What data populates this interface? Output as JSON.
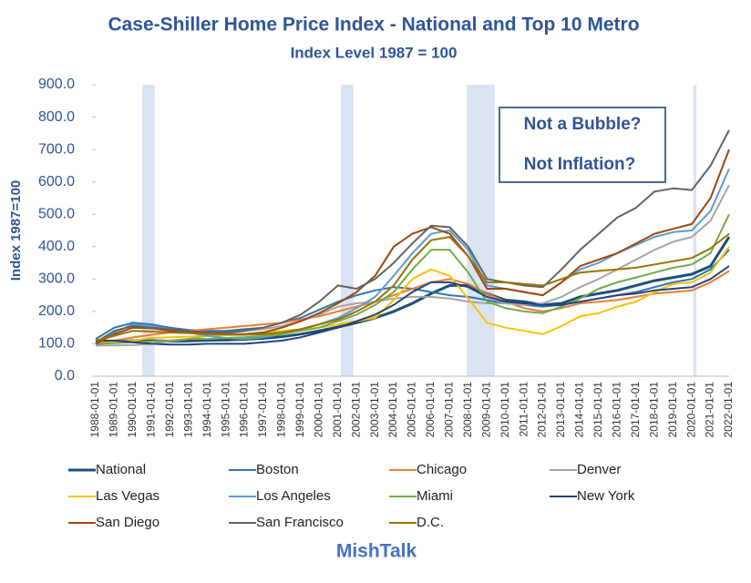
{
  "chart_data": {
    "type": "line",
    "title": "Case-Shiller Home Price Index - National and Top 10 Metro",
    "subtitle": "Index Level 1987 = 100",
    "y_label": "Index 1987=100",
    "footer": "MishTalk",
    "annotations": [
      "Not a Bubble?",
      "Not Inflation?"
    ],
    "x": [
      "1988-01-01",
      "1989-01-01",
      "1990-01-01",
      "1991-01-01",
      "1992-01-01",
      "1993-01-01",
      "1994-01-01",
      "1995-01-01",
      "1996-01-01",
      "1997-01-01",
      "1998-01-01",
      "1999-01-01",
      "2000-01-01",
      "2001-01-01",
      "2002-01-01",
      "2003-01-01",
      "2004-01-01",
      "2005-01-01",
      "2006-01-01",
      "2007-01-01",
      "2008-01-01",
      "2009-01-01",
      "2010-01-01",
      "2011-01-01",
      "2012-01-01",
      "2013-01-01",
      "2014-01-01",
      "2015-01-01",
      "2016-01-01",
      "2017-01-01",
      "2018-01-01",
      "2019-01-01",
      "2020-01-01",
      "2021-01-01",
      "2022-01-01"
    ],
    "ylim": [
      0,
      900
    ],
    "yticks": [
      {
        "value": 0,
        "label": "0.0"
      },
      {
        "value": 100,
        "label": "100.0"
      },
      {
        "value": 200,
        "label": "200.0"
      },
      {
        "value": 300,
        "label": "300.0"
      },
      {
        "value": 400,
        "label": "400.0"
      },
      {
        "value": 500,
        "label": "500.0"
      },
      {
        "value": 600,
        "label": "600.0"
      },
      {
        "value": 700,
        "label": "700.0"
      },
      {
        "value": 800,
        "label": "800.0"
      },
      {
        "value": 900,
        "label": "900.0"
      }
    ],
    "recessions": [
      [
        "1990-07-01",
        "1991-03-01"
      ],
      [
        "2001-03-01",
        "2001-11-01"
      ],
      [
        "2007-12-01",
        "2009-06-01"
      ],
      [
        "2020-02-01",
        "2020-04-01"
      ]
    ],
    "recession_color": "#dae3f3",
    "series": [
      {
        "name": "National",
        "color": "#1f4e79",
        "values": [
          100,
          105,
          110,
          110,
          108,
          109,
          111,
          112,
          114,
          117,
          122,
          130,
          140,
          152,
          165,
          180,
          200,
          225,
          255,
          280,
          280,
          255,
          235,
          230,
          220,
          225,
          245,
          255,
          265,
          280,
          295,
          305,
          315,
          340,
          430
        ]
      },
      {
        "name": "Boston",
        "color": "#2e75b6",
        "values": [
          115,
          150,
          165,
          160,
          150,
          143,
          140,
          140,
          145,
          150,
          165,
          180,
          205,
          230,
          250,
          265,
          275,
          270,
          260,
          250,
          245,
          235,
          225,
          220,
          215,
          220,
          230,
          240,
          250,
          260,
          275,
          290,
          300,
          330,
          390
        ]
      },
      {
        "name": "Chicago",
        "color": "#ed7d31",
        "values": [
          100,
          110,
          120,
          128,
          135,
          140,
          145,
          150,
          155,
          160,
          165,
          175,
          185,
          200,
          215,
          230,
          250,
          270,
          290,
          300,
          285,
          255,
          230,
          210,
          200,
          210,
          225,
          230,
          235,
          245,
          255,
          260,
          265,
          290,
          325
        ]
      },
      {
        "name": "Denver",
        "color": "#a5a5a5",
        "values": [
          95,
          95,
          96,
          100,
          108,
          115,
          125,
          133,
          140,
          145,
          155,
          170,
          190,
          215,
          225,
          230,
          240,
          245,
          245,
          240,
          230,
          225,
          225,
          220,
          225,
          245,
          275,
          300,
          330,
          360,
          390,
          415,
          430,
          480,
          590
        ]
      },
      {
        "name": "Las Vegas",
        "color": "#ffc000",
        "values": [
          100,
          105,
          110,
          118,
          120,
          122,
          125,
          128,
          130,
          135,
          140,
          145,
          150,
          160,
          170,
          180,
          235,
          300,
          330,
          310,
          240,
          165,
          150,
          140,
          130,
          155,
          185,
          195,
          215,
          230,
          260,
          285,
          290,
          320,
          400
        ]
      },
      {
        "name": "Los Angeles",
        "color": "#5b9bd5",
        "values": [
          100,
          135,
          160,
          155,
          145,
          135,
          125,
          118,
          115,
          120,
          130,
          145,
          160,
          180,
          210,
          245,
          310,
          380,
          440,
          450,
          390,
          280,
          270,
          260,
          250,
          290,
          330,
          350,
          380,
          405,
          430,
          445,
          450,
          510,
          640
        ]
      },
      {
        "name": "Miami",
        "color": "#70ad47",
        "values": [
          100,
          102,
          105,
          108,
          110,
          115,
          115,
          118,
          120,
          125,
          130,
          140,
          150,
          170,
          190,
          220,
          260,
          330,
          390,
          390,
          320,
          230,
          210,
          200,
          195,
          215,
          240,
          270,
          290,
          305,
          320,
          335,
          345,
          380,
          500
        ]
      },
      {
        "name": "New York",
        "color": "#264478",
        "values": [
          110,
          110,
          105,
          100,
          98,
          98,
          100,
          100,
          100,
          105,
          110,
          120,
          135,
          150,
          170,
          190,
          220,
          260,
          290,
          290,
          275,
          245,
          230,
          225,
          220,
          220,
          230,
          240,
          250,
          255,
          265,
          270,
          275,
          300,
          340
        ]
      },
      {
        "name": "San Diego",
        "color": "#9e480e",
        "values": [
          100,
          130,
          150,
          148,
          140,
          135,
          130,
          130,
          130,
          135,
          150,
          170,
          195,
          225,
          260,
          310,
          400,
          440,
          460,
          440,
          370,
          270,
          270,
          260,
          250,
          290,
          340,
          360,
          380,
          410,
          440,
          455,
          470,
          550,
          700
        ]
      },
      {
        "name": "San Francisco",
        "color": "#636363",
        "values": [
          105,
          140,
          155,
          150,
          145,
          140,
          135,
          135,
          140,
          150,
          165,
          190,
          230,
          280,
          270,
          300,
          350,
          410,
          465,
          460,
          400,
          300,
          290,
          280,
          275,
          330,
          390,
          440,
          490,
          520,
          570,
          580,
          575,
          650,
          760
        ]
      },
      {
        "name": "D.C.",
        "color": "#997300",
        "values": [
          110,
          125,
          140,
          138,
          135,
          133,
          130,
          128,
          128,
          130,
          135,
          145,
          160,
          175,
          200,
          230,
          280,
          360,
          420,
          430,
          370,
          290,
          290,
          285,
          280,
          300,
          320,
          325,
          330,
          335,
          345,
          355,
          365,
          395,
          440
        ]
      }
    ]
  }
}
